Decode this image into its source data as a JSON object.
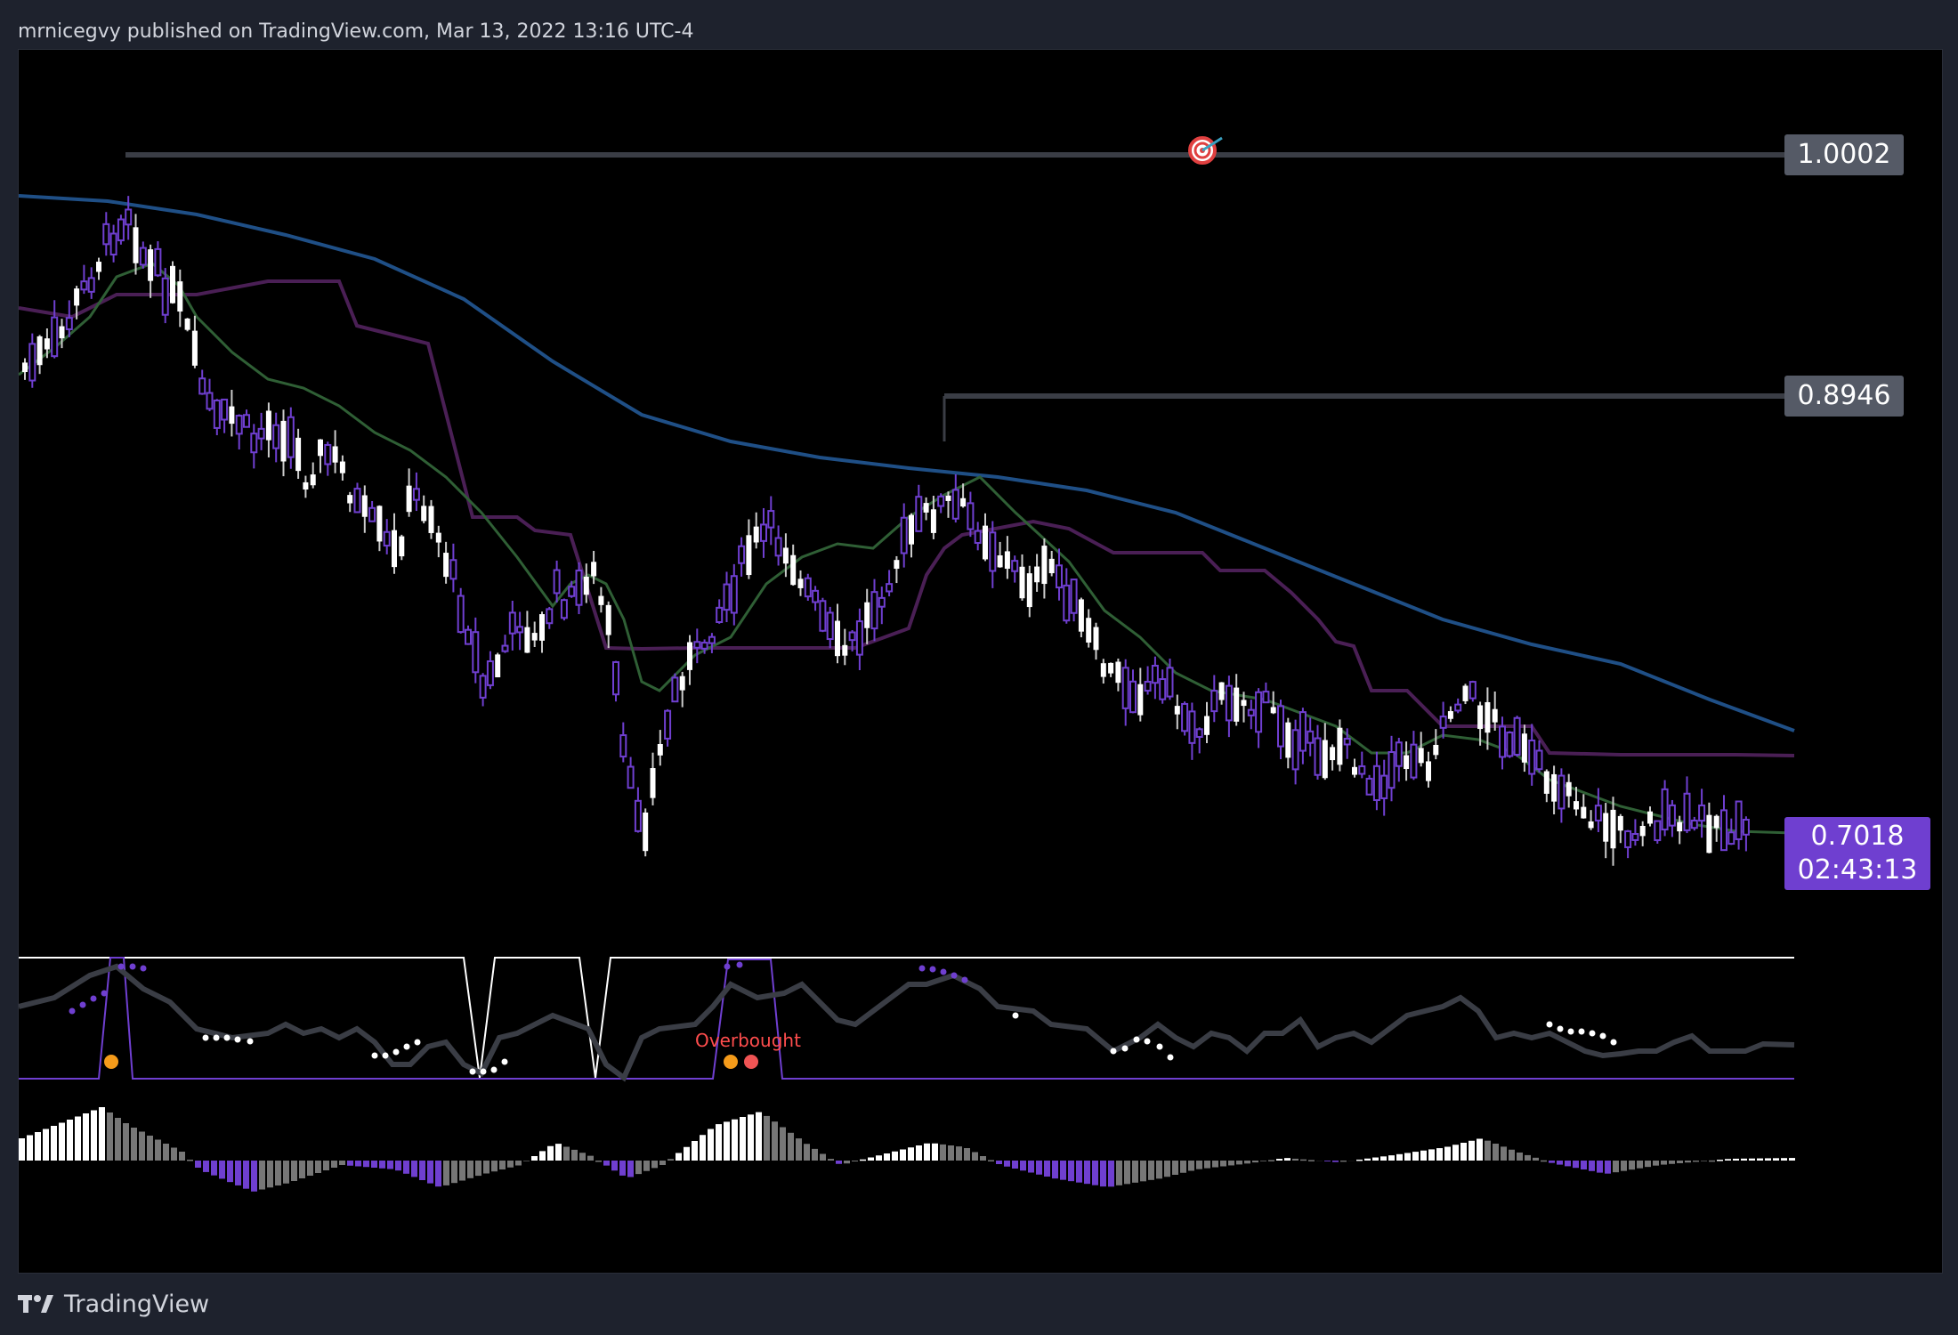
{
  "header": {
    "publish_text": "mrnicegvy published on TradingView.com, Mar 13, 2022 13:16 UTC-4"
  },
  "price_labels": {
    "target": "1.0002",
    "resistance": "0.8946",
    "current_price": "0.7018",
    "countdown": "02:43:13"
  },
  "oscillator": {
    "signal_text": "Overbought"
  },
  "footer": {
    "brand": "TradingView",
    "logo_icon": "tradingview-logo-icon"
  },
  "colors": {
    "background": "#1e222d",
    "chart_bg": "#000000",
    "bull_candle": "#ffffff",
    "bear_candle": "#6f3fd0",
    "ema_fast": "#2f5f35",
    "ema_slow": "#1f4f86",
    "channel": "#4a1f55",
    "current_price_label": "#6f3fd0",
    "level_label": "#555a66",
    "overbought_text": "#ff4d4d"
  },
  "chart_data": {
    "type": "candlestick",
    "title": "",
    "price_levels": [
      1.0002,
      0.8946
    ],
    "last_price": 0.7018,
    "ylim": [
      0.68,
      1.06
    ],
    "series": [
      {
        "kind": "ema-fast"
      },
      {
        "kind": "ema-slow"
      },
      {
        "kind": "channel"
      }
    ],
    "sub_panels": [
      "oscillator",
      "histogram"
    ],
    "oscillator_annotation": "Overbought"
  }
}
